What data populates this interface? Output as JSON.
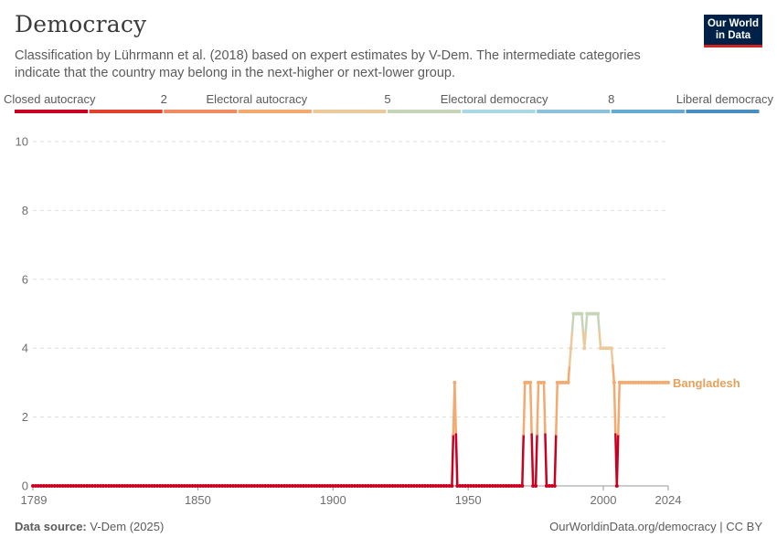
{
  "header": {
    "title": "Democracy",
    "subtitle": "Classification by Lührmann et al. (2018) based on expert estimates by V-Dem. The intermediate categories indicate that the country may belong in the next-higher or next-lower group.",
    "logo_line1": "Our World",
    "logo_line2": "in Data"
  },
  "footer": {
    "source_label": "Data source:",
    "source_value": "V-Dem (2025)",
    "url": "OurWorldinData.org/democracy | CC BY"
  },
  "colors": {
    "scale": [
      "#ca0020",
      "#e0422f",
      "#ef8a62",
      "#f4a96e",
      "#ebc99a",
      "#c6d4b8",
      "#aad8e3",
      "#8cc2dc",
      "#67a9cf",
      "#4a8ec0"
    ],
    "grid": "#dddddd",
    "axis": "#999999",
    "series_label": "#e6a15a"
  },
  "chart_data": {
    "type": "line",
    "title": "Democracy",
    "legend": {
      "labels": [
        {
          "text": "Closed autocracy",
          "slot": 0
        },
        {
          "text": "2",
          "slot": 2
        },
        {
          "text": "Electoral autocracy",
          "slot": 3
        },
        {
          "text": "5",
          "slot": 5
        },
        {
          "text": "Electoral democracy",
          "slot": 6
        },
        {
          "text": "8",
          "slot": 8
        },
        {
          "text": "Liberal democracy",
          "slot": 9
        }
      ],
      "placement": "top"
    },
    "xlim": [
      1789,
      2024
    ],
    "ylim": [
      0,
      10
    ],
    "x_ticks": [
      1789,
      1850,
      1900,
      1950,
      2000,
      2024
    ],
    "y_ticks": [
      0,
      2,
      4,
      6,
      8,
      10
    ],
    "grid": true,
    "series": [
      {
        "name": "Bangladesh",
        "points": [
          [
            1789,
            0
          ],
          [
            1944,
            0
          ],
          [
            1945,
            3
          ],
          [
            1946,
            0
          ],
          [
            1970,
            0
          ],
          [
            1971,
            3
          ],
          [
            1973,
            3
          ],
          [
            1974,
            0
          ],
          [
            1975,
            0
          ],
          [
            1976,
            3
          ],
          [
            1978,
            3
          ],
          [
            1979,
            0
          ],
          [
            1982,
            0
          ],
          [
            1983,
            3
          ],
          [
            1987,
            3
          ],
          [
            1988,
            4
          ],
          [
            1989,
            5
          ],
          [
            1992,
            5
          ],
          [
            1993,
            4
          ],
          [
            1994,
            5
          ],
          [
            1998,
            5
          ],
          [
            1999,
            4
          ],
          [
            2003,
            4
          ],
          [
            2004,
            3
          ],
          [
            2005,
            0
          ],
          [
            2006,
            3
          ],
          [
            2024,
            3
          ]
        ]
      }
    ]
  }
}
